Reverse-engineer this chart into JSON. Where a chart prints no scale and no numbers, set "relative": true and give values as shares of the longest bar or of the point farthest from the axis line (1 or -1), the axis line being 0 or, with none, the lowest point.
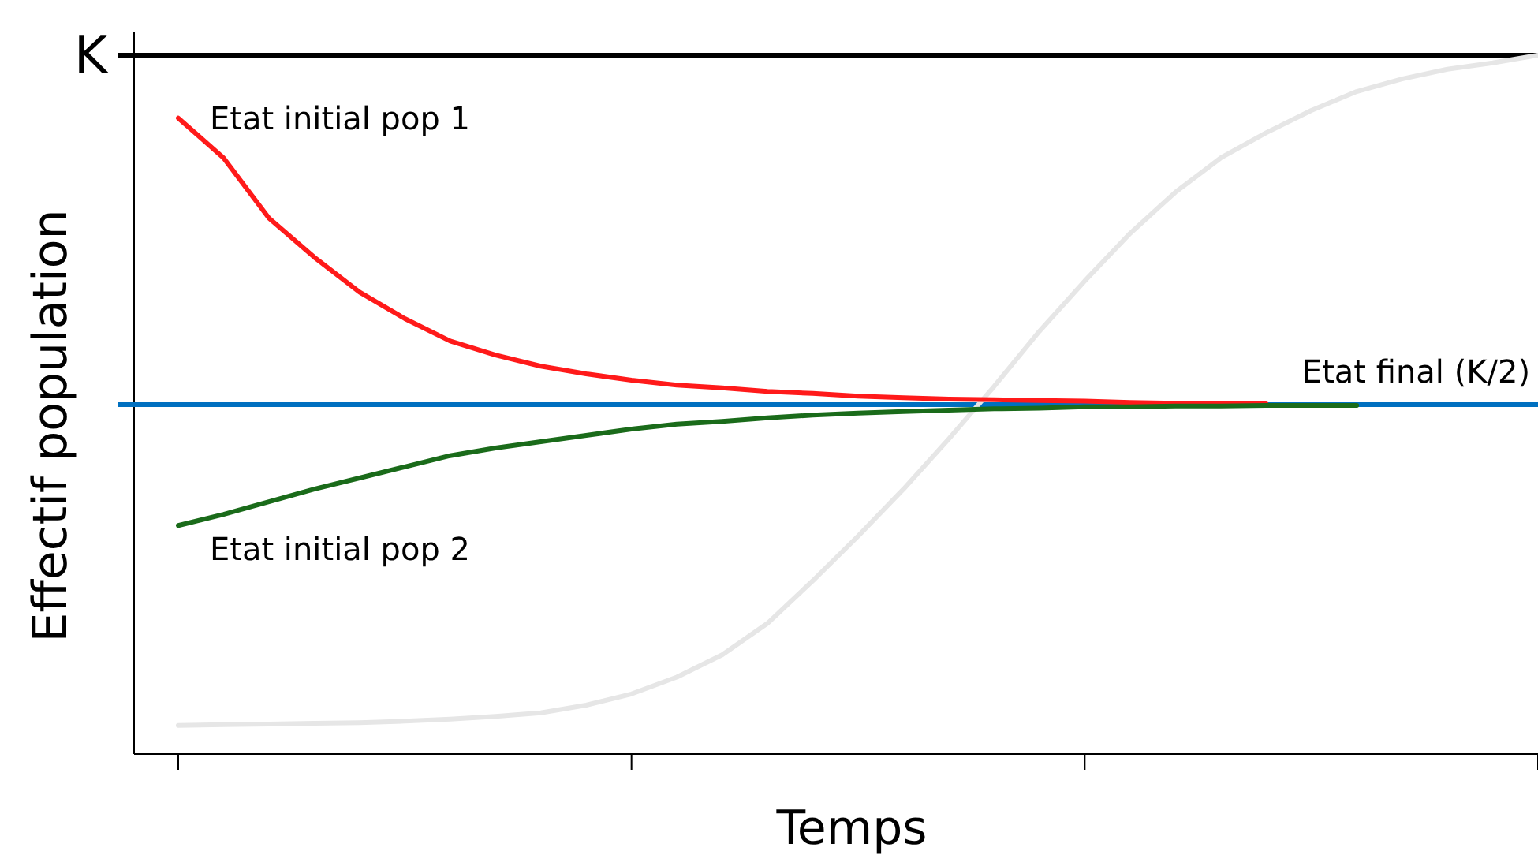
{
  "chart_data": {
    "type": "line",
    "xlabel": "Temps",
    "ylabel": "Effectif population",
    "relative": true,
    "legend": false,
    "grid": false,
    "marker": "none",
    "line_style": "solid",
    "categories": [
      null,
      null,
      null,
      null,
      null,
      null,
      null,
      null,
      null,
      null,
      null,
      null,
      null,
      null,
      null,
      null,
      null,
      null,
      null,
      null,
      null,
      null,
      null,
      null,
      null,
      null,
      null,
      null,
      null,
      null,
      null
    ],
    "series": [
      {
        "color": "#e6e6e6",
        "values": [
          0.041,
          0.042,
          0.043,
          0.044,
          0.045,
          0.047,
          0.05,
          0.054,
          0.059,
          0.07,
          0.086,
          0.11,
          0.142,
          0.187,
          0.248,
          0.312,
          0.379,
          0.451,
          0.526,
          0.605,
          0.677,
          0.745,
          0.804,
          0.853,
          0.889,
          0.921,
          0.948,
          0.966,
          0.98,
          0.989,
          1.0
        ]
      },
      {
        "name": "Etat initial pop 1",
        "color": "#ff1a1a",
        "values": [
          0.91,
          0.853,
          0.767,
          0.711,
          0.661,
          0.623,
          0.591,
          0.571,
          0.555,
          0.544,
          0.535,
          0.528,
          0.524,
          0.519,
          0.516,
          0.512,
          0.51,
          0.508,
          0.507,
          0.506,
          0.505,
          0.503,
          0.502,
          0.502,
          0.501,
          null,
          null,
          null,
          null,
          null,
          null
        ]
      },
      {
        "name": "Etat initial pop 2",
        "color": "#1a6b1a",
        "values": [
          0.327,
          0.343,
          0.361,
          0.379,
          0.395,
          0.411,
          0.427,
          0.438,
          0.447,
          0.456,
          0.465,
          0.472,
          0.476,
          0.481,
          0.485,
          0.488,
          0.49,
          0.492,
          0.494,
          0.495,
          0.497,
          0.497,
          0.498,
          0.498,
          0.499,
          0.499,
          0.499,
          null,
          null,
          null,
          null
        ]
      }
    ],
    "ref_lines": [
      {
        "axis": "y",
        "value": 1,
        "label": "K",
        "color": "#000000"
      },
      {
        "axis": "y",
        "value": 0.5,
        "label": "Etat final (K/2)",
        "color": "#0070c0"
      }
    ]
  }
}
